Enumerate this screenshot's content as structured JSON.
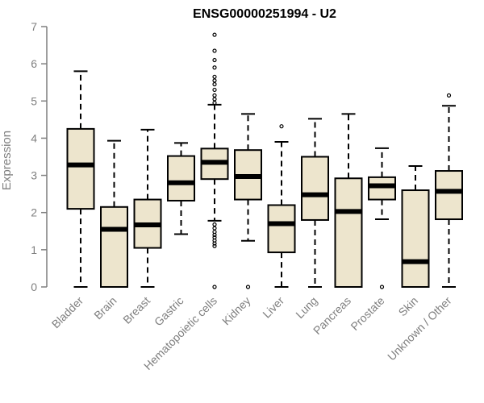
{
  "chart_data": {
    "type": "boxplot",
    "title": "ENSG00000251994 - U2",
    "xlabel": "",
    "ylabel": "Expression",
    "ylim": [
      0,
      7
    ],
    "yticks": [
      0,
      1,
      2,
      3,
      4,
      5,
      6,
      7
    ],
    "grid": false,
    "colors": {
      "box_fill": "#ede5cd",
      "outline": "#000000",
      "axis": "#7f7f7f",
      "text": "#7f7f7f"
    },
    "categories": [
      "Bladder",
      "Brain",
      "Breast",
      "Gastric",
      "Hematopoietic cells",
      "Kidney",
      "Liver",
      "Lung",
      "Pancreas",
      "Prostate",
      "Skin",
      "Unknown / Other"
    ],
    "boxes": [
      {
        "category": "Bladder",
        "whisker_low": 0,
        "q1": 2.1,
        "median": 3.28,
        "q3": 4.25,
        "whisker_high": 5.8,
        "outliers": []
      },
      {
        "category": "Brain",
        "whisker_low": 0,
        "q1": 0,
        "median": 1.55,
        "q3": 2.15,
        "whisker_high": 3.93,
        "outliers": []
      },
      {
        "category": "Breast",
        "whisker_low": 0,
        "q1": 1.05,
        "median": 1.67,
        "q3": 2.35,
        "whisker_high": 4.23,
        "outliers": []
      },
      {
        "category": "Gastric",
        "whisker_low": 1.42,
        "q1": 2.32,
        "median": 2.8,
        "q3": 3.52,
        "whisker_high": 3.87,
        "outliers": []
      },
      {
        "category": "Hematopoietic cells",
        "whisker_low": 1.78,
        "q1": 2.9,
        "median": 3.35,
        "q3": 3.72,
        "whisker_high": 4.9,
        "outliers": [
          0,
          1.1,
          1.17,
          1.25,
          1.33,
          1.4,
          1.48,
          1.58,
          1.68,
          4.95,
          5.05,
          5.15,
          5.3,
          5.45,
          5.55,
          5.65,
          5.9,
          6.1,
          6.35,
          6.78
        ]
      },
      {
        "category": "Kidney",
        "whisker_low": 1.24,
        "q1": 2.35,
        "median": 2.97,
        "q3": 3.68,
        "whisker_high": 4.65,
        "outliers": [
          0
        ]
      },
      {
        "category": "Liver",
        "whisker_low": 0,
        "q1": 0.93,
        "median": 1.7,
        "q3": 2.2,
        "whisker_high": 3.9,
        "outliers": [
          4.32
        ]
      },
      {
        "category": "Lung",
        "whisker_low": 0,
        "q1": 1.8,
        "median": 2.48,
        "q3": 3.5,
        "whisker_high": 4.52,
        "outliers": []
      },
      {
        "category": "Pancreas",
        "whisker_low": 0,
        "q1": 0,
        "median": 2.03,
        "q3": 2.92,
        "whisker_high": 4.65,
        "outliers": []
      },
      {
        "category": "Prostate",
        "whisker_low": 1.82,
        "q1": 2.35,
        "median": 2.72,
        "q3": 2.95,
        "whisker_high": 3.73,
        "outliers": [
          0
        ]
      },
      {
        "category": "Skin",
        "whisker_low": 0,
        "q1": 0,
        "median": 0.68,
        "q3": 2.6,
        "whisker_high": 3.25,
        "outliers": []
      },
      {
        "category": "Unknown / Other",
        "whisker_low": 0,
        "q1": 1.82,
        "median": 2.57,
        "q3": 3.12,
        "whisker_high": 4.87,
        "outliers": [
          5.15
        ]
      }
    ]
  }
}
